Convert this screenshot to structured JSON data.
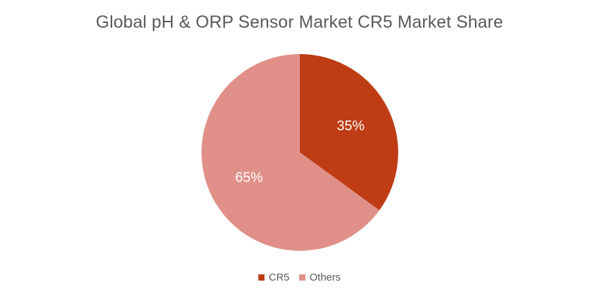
{
  "chart_data": {
    "type": "pie",
    "title": "Global pH & ORP Sensor Market CR5 Market Share",
    "categories": [
      "CR5",
      "Others"
    ],
    "values": [
      35,
      65
    ],
    "labels": [
      "35%",
      "65%"
    ],
    "colors": [
      "#BE3D14",
      "#E09088"
    ],
    "legend": {
      "position": "bottom"
    }
  }
}
